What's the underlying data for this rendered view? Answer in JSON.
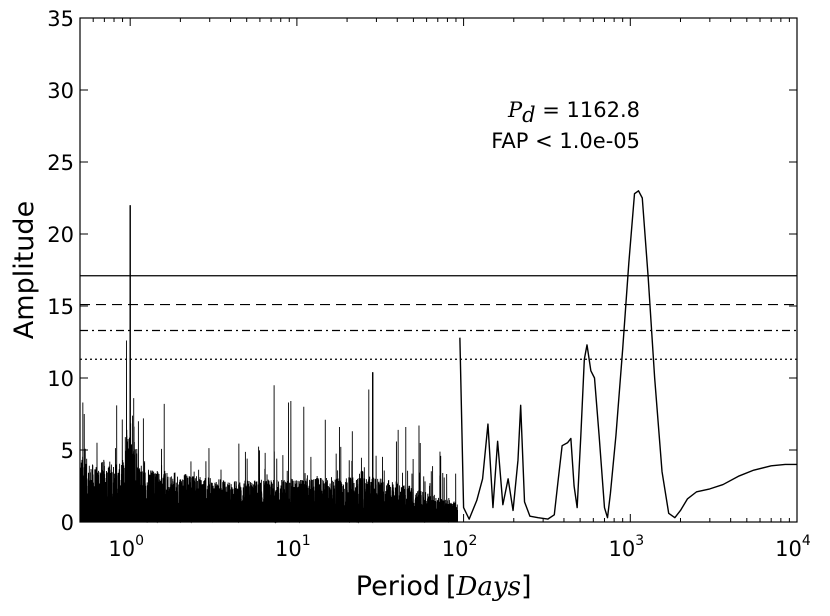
{
  "chart_data": {
    "type": "line",
    "xlabel": "Period",
    "xlabel_unit": "Days",
    "ylabel": "Amplitude",
    "xscale": "log",
    "xlim": [
      0.5,
      10000
    ],
    "ylim": [
      0,
      35
    ],
    "yticks": [
      "0",
      "5",
      "10",
      "15",
      "20",
      "25",
      "30",
      "35"
    ],
    "xticks": [
      {
        "base": "10",
        "exp": "0",
        "value": 1
      },
      {
        "base": "10",
        "exp": "1",
        "value": 10
      },
      {
        "base": "10",
        "exp": "2",
        "value": 100
      },
      {
        "base": "10",
        "exp": "3",
        "value": 1000
      },
      {
        "base": "10",
        "exp": "4",
        "value": 10000
      }
    ],
    "annotation": {
      "symbol": "P",
      "subscript": "d",
      "period_text": " = 1162.8",
      "fap_text": "FAP < 1.0e-05",
      "period": 1162.8
    },
    "thresholds": [
      {
        "style": "solid",
        "value": 17.1
      },
      {
        "style": "dashed",
        "value": 15.1
      },
      {
        "style": "dashdot",
        "value": 13.3
      },
      {
        "style": "dotted",
        "value": 11.3
      }
    ],
    "series": [
      {
        "peaks": [
          {
            "period": 1.0,
            "amplitude": 22.0
          },
          {
            "period": 28.5,
            "amplitude": 10.4
          },
          {
            "period": 95,
            "amplitude": 12.8
          },
          {
            "period": 545,
            "amplitude": 12.3
          },
          {
            "period": 1120,
            "amplitude": 23.0
          }
        ],
        "smooth_part": [
          [
            95,
            12.8
          ],
          [
            100,
            1.0
          ],
          [
            108,
            0.2
          ],
          [
            120,
            1.5
          ],
          [
            130,
            3.0
          ],
          [
            140,
            6.8
          ],
          [
            150,
            1.0
          ],
          [
            160,
            5.6
          ],
          [
            172,
            1.2
          ],
          [
            185,
            3.0
          ],
          [
            198,
            0.8
          ],
          [
            212,
            4.3
          ],
          [
            220,
            8.1
          ],
          [
            232,
            1.4
          ],
          [
            250,
            0.4
          ],
          [
            280,
            0.3
          ],
          [
            320,
            0.2
          ],
          [
            350,
            0.5
          ],
          [
            370,
            3.0
          ],
          [
            390,
            5.3
          ],
          [
            420,
            5.5
          ],
          [
            440,
            5.8
          ],
          [
            460,
            2.5
          ],
          [
            480,
            1.0
          ],
          [
            505,
            6.0
          ],
          [
            530,
            11.3
          ],
          [
            550,
            12.3
          ],
          [
            580,
            10.5
          ],
          [
            610,
            10.0
          ],
          [
            650,
            6.0
          ],
          [
            700,
            1.0
          ],
          [
            730,
            0.3
          ],
          [
            760,
            2.0
          ],
          [
            820,
            6.0
          ],
          [
            900,
            12.0
          ],
          [
            980,
            18.0
          ],
          [
            1060,
            22.8
          ],
          [
            1120,
            23.0
          ],
          [
            1180,
            22.5
          ],
          [
            1280,
            17.0
          ],
          [
            1400,
            10.0
          ],
          [
            1550,
            3.5
          ],
          [
            1700,
            0.6
          ],
          [
            1850,
            0.3
          ],
          [
            2000,
            0.8
          ],
          [
            2200,
            1.6
          ],
          [
            2500,
            2.1
          ],
          [
            3000,
            2.3
          ],
          [
            3600,
            2.6
          ],
          [
            4500,
            3.2
          ],
          [
            5500,
            3.6
          ],
          [
            7000,
            3.9
          ],
          [
            8500,
            4.0
          ],
          [
            10000,
            4.0
          ]
        ]
      }
    ]
  }
}
